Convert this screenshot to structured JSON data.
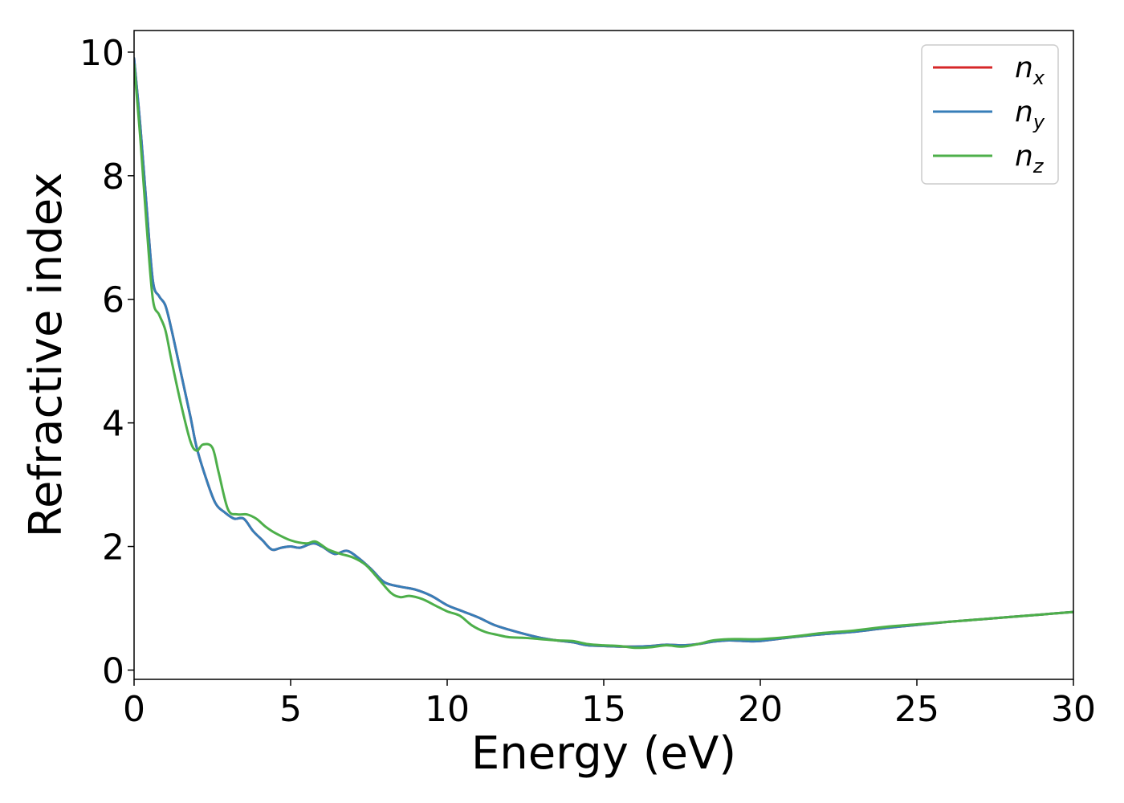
{
  "chart_data": {
    "type": "line",
    "xlabel": "Energy (eV)",
    "ylabel": "Refractive index",
    "xlim": [
      0,
      30
    ],
    "ylim": [
      -0.15,
      10.35
    ],
    "xticks": [
      "0",
      "5",
      "10",
      "15",
      "20",
      "25",
      "30"
    ],
    "yticks": [
      "0",
      "2",
      "4",
      "6",
      "8",
      "10"
    ],
    "grid": false,
    "legend_position": "top-right",
    "series": [
      {
        "name": "n",
        "subscript": "x",
        "color": "#d62728",
        "x": [
          0,
          0.2,
          0.4,
          0.6,
          0.8,
          1.0,
          1.2,
          1.5,
          1.8,
          2.0,
          2.3,
          2.6,
          2.9,
          3.2,
          3.5,
          3.8,
          4.1,
          4.4,
          4.7,
          5.0,
          5.3,
          5.7,
          6.0,
          6.4,
          6.8,
          7.2,
          7.6,
          8.0,
          8.5,
          9.0,
          9.5,
          10.0,
          10.5,
          11.0,
          11.5,
          12.0,
          12.5,
          13.0,
          13.5,
          14.0,
          14.5,
          15.0,
          15.5,
          16.0,
          16.5,
          17.0,
          17.5,
          18.0,
          18.5,
          19.0,
          19.5,
          20.0,
          21.0,
          22.0,
          23.0,
          24.0,
          25.0,
          26.0,
          27.0,
          28.0,
          29.0,
          30.0
        ],
        "y": [
          9.9,
          8.8,
          7.5,
          6.3,
          6.05,
          5.9,
          5.5,
          4.8,
          4.1,
          3.6,
          3.1,
          2.7,
          2.55,
          2.45,
          2.45,
          2.25,
          2.1,
          1.95,
          1.98,
          2.0,
          1.98,
          2.05,
          2.0,
          1.88,
          1.93,
          1.8,
          1.62,
          1.42,
          1.35,
          1.3,
          1.2,
          1.05,
          0.95,
          0.85,
          0.73,
          0.65,
          0.58,
          0.52,
          0.48,
          0.45,
          0.4,
          0.39,
          0.38,
          0.38,
          0.39,
          0.41,
          0.4,
          0.42,
          0.46,
          0.48,
          0.47,
          0.47,
          0.53,
          0.58,
          0.62,
          0.68,
          0.73,
          0.78,
          0.82,
          0.86,
          0.9,
          0.94
        ]
      },
      {
        "name": "n",
        "subscript": "y",
        "color": "#377eb8",
        "x": [
          0,
          0.2,
          0.4,
          0.6,
          0.8,
          1.0,
          1.2,
          1.5,
          1.8,
          2.0,
          2.3,
          2.6,
          2.9,
          3.2,
          3.5,
          3.8,
          4.1,
          4.4,
          4.7,
          5.0,
          5.3,
          5.7,
          6.0,
          6.4,
          6.8,
          7.2,
          7.6,
          8.0,
          8.5,
          9.0,
          9.5,
          10.0,
          10.5,
          11.0,
          11.5,
          12.0,
          12.5,
          13.0,
          13.5,
          14.0,
          14.5,
          15.0,
          15.5,
          16.0,
          16.5,
          17.0,
          17.5,
          18.0,
          18.5,
          19.0,
          19.5,
          20.0,
          21.0,
          22.0,
          23.0,
          24.0,
          25.0,
          26.0,
          27.0,
          28.0,
          29.0,
          30.0
        ],
        "y": [
          9.9,
          8.8,
          7.5,
          6.3,
          6.05,
          5.9,
          5.5,
          4.8,
          4.1,
          3.6,
          3.1,
          2.7,
          2.55,
          2.45,
          2.45,
          2.25,
          2.1,
          1.95,
          1.98,
          2.0,
          1.98,
          2.05,
          2.0,
          1.88,
          1.93,
          1.8,
          1.62,
          1.42,
          1.35,
          1.3,
          1.2,
          1.05,
          0.95,
          0.85,
          0.73,
          0.65,
          0.58,
          0.52,
          0.48,
          0.45,
          0.4,
          0.39,
          0.38,
          0.38,
          0.39,
          0.41,
          0.4,
          0.42,
          0.46,
          0.48,
          0.47,
          0.47,
          0.53,
          0.58,
          0.62,
          0.68,
          0.73,
          0.78,
          0.82,
          0.86,
          0.9,
          0.94
        ]
      },
      {
        "name": "n",
        "subscript": "z",
        "color": "#4daf4a",
        "x": [
          0,
          0.2,
          0.4,
          0.6,
          0.8,
          1.0,
          1.2,
          1.5,
          1.8,
          2.0,
          2.2,
          2.5,
          2.7,
          3.0,
          3.3,
          3.6,
          3.9,
          4.2,
          4.5,
          5.0,
          5.5,
          5.8,
          6.2,
          6.6,
          7.0,
          7.4,
          7.8,
          8.2,
          8.5,
          8.8,
          9.2,
          9.6,
          10.0,
          10.4,
          10.8,
          11.2,
          11.6,
          12.0,
          12.5,
          13.0,
          13.5,
          14.0,
          14.5,
          15.0,
          15.5,
          16.0,
          16.5,
          17.0,
          17.5,
          18.0,
          18.5,
          19.0,
          19.5,
          20.0,
          21.0,
          22.0,
          23.0,
          24.0,
          25.0,
          26.0,
          27.0,
          28.0,
          29.0,
          30.0
        ],
        "y": [
          9.8,
          8.6,
          7.2,
          6.0,
          5.75,
          5.5,
          5.0,
          4.3,
          3.7,
          3.55,
          3.65,
          3.6,
          3.2,
          2.6,
          2.52,
          2.52,
          2.45,
          2.32,
          2.22,
          2.1,
          2.05,
          2.08,
          1.95,
          1.88,
          1.82,
          1.7,
          1.48,
          1.25,
          1.18,
          1.2,
          1.15,
          1.05,
          0.95,
          0.88,
          0.72,
          0.62,
          0.57,
          0.53,
          0.52,
          0.5,
          0.48,
          0.47,
          0.42,
          0.4,
          0.39,
          0.36,
          0.37,
          0.4,
          0.38,
          0.42,
          0.48,
          0.5,
          0.5,
          0.5,
          0.54,
          0.6,
          0.64,
          0.7,
          0.74,
          0.78,
          0.82,
          0.86,
          0.9,
          0.94
        ]
      }
    ]
  }
}
